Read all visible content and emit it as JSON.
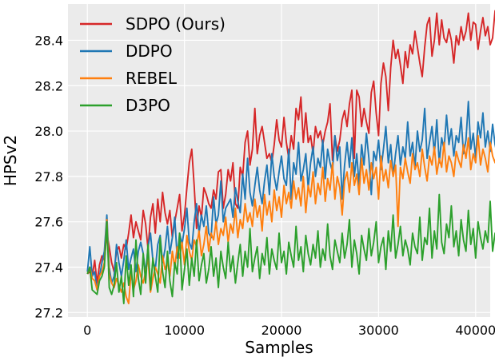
{
  "chart_data": {
    "type": "line",
    "title": "",
    "xlabel": "Samples",
    "ylabel": "HPSv2",
    "xlim": [
      -2000,
      41500
    ],
    "ylim": [
      27.18,
      28.56
    ],
    "xticks": [
      0,
      10000,
      20000,
      30000,
      40000
    ],
    "yticks": [
      27.2,
      27.4,
      27.6,
      27.8,
      28.0,
      28.2,
      28.4
    ],
    "grid": true,
    "background": "#ebebeb",
    "legend_position": "top-left",
    "x_start": 0,
    "x_step": 250,
    "series": [
      {
        "name": "SDPO (Ours)",
        "color": "#d62728",
        "values": [
          27.37,
          27.38,
          27.36,
          27.43,
          27.33,
          27.41,
          27.45,
          27.43,
          27.55,
          27.49,
          27.42,
          27.38,
          27.47,
          27.49,
          27.44,
          27.5,
          27.48,
          27.55,
          27.63,
          27.53,
          27.6,
          27.56,
          27.52,
          27.65,
          27.59,
          27.48,
          27.62,
          27.68,
          27.55,
          27.7,
          27.6,
          27.73,
          27.64,
          27.59,
          27.65,
          27.53,
          27.6,
          27.66,
          27.72,
          27.56,
          27.63,
          27.75,
          27.86,
          27.92,
          27.76,
          27.57,
          27.67,
          27.62,
          27.75,
          27.72,
          27.68,
          27.66,
          27.74,
          27.7,
          27.82,
          27.83,
          27.66,
          27.72,
          27.83,
          27.78,
          27.86,
          27.68,
          27.66,
          27.84,
          27.8,
          27.95,
          28.0,
          27.85,
          27.92,
          28.1,
          27.9,
          27.98,
          28.02,
          27.95,
          27.88,
          27.9,
          27.86,
          27.94,
          28.05,
          27.96,
          27.93,
          28.06,
          27.95,
          27.88,
          27.98,
          27.92,
          28.1,
          28.05,
          28.15,
          27.95,
          28.08,
          27.95,
          27.98,
          27.9,
          28.02,
          27.97,
          28.0,
          27.94,
          28.0,
          28.04,
          28.12,
          27.87,
          27.98,
          27.91,
          27.96,
          28.05,
          28.09,
          28.02,
          28.12,
          28.18,
          27.88,
          28.18,
          28.15,
          28.02,
          28.1,
          28.04,
          27.99,
          28.17,
          28.22,
          28.08,
          27.98,
          28.21,
          28.3,
          28.24,
          28.09,
          28.28,
          28.4,
          28.32,
          28.36,
          28.29,
          28.21,
          28.35,
          28.28,
          28.38,
          28.34,
          28.44,
          28.37,
          28.3,
          28.24,
          28.37,
          28.47,
          28.5,
          28.33,
          28.4,
          28.52,
          28.38,
          28.49,
          28.41,
          28.39,
          28.45,
          28.4,
          28.3,
          28.42,
          28.38,
          28.46,
          28.4,
          28.44,
          28.52,
          28.4,
          28.48,
          28.47,
          28.36,
          28.44,
          28.5,
          28.42,
          28.46,
          28.38,
          28.41,
          28.53,
          28.42,
          28.39,
          28.44,
          28.36,
          28.48,
          28.52,
          28.45,
          28.35,
          28.49,
          28.38,
          28.53,
          28.47,
          28.3,
          28.4,
          28.54,
          28.35,
          28.42,
          28.48,
          28.36,
          28.3,
          28.4,
          28.44,
          28.37,
          28.42,
          28.38,
          28.49,
          28.46
        ]
      },
      {
        "name": "DDPO",
        "color": "#1f77b4",
        "values": [
          27.38,
          27.49,
          27.36,
          27.38,
          27.3,
          27.36,
          27.42,
          27.47,
          27.63,
          27.4,
          27.33,
          27.36,
          27.5,
          27.42,
          27.36,
          27.43,
          27.52,
          27.39,
          27.44,
          27.48,
          27.38,
          27.47,
          27.51,
          27.46,
          27.37,
          27.49,
          27.55,
          27.43,
          27.39,
          27.5,
          27.54,
          27.42,
          27.48,
          27.58,
          27.46,
          27.53,
          27.62,
          27.44,
          27.55,
          27.5,
          27.57,
          27.66,
          27.51,
          27.48,
          27.6,
          27.68,
          27.55,
          27.63,
          27.58,
          27.67,
          27.55,
          27.53,
          27.71,
          27.59,
          27.63,
          27.78,
          27.6,
          27.66,
          27.68,
          27.7,
          27.62,
          27.75,
          27.69,
          27.64,
          27.81,
          27.7,
          27.88,
          27.73,
          27.67,
          27.76,
          27.84,
          27.74,
          27.68,
          27.78,
          27.85,
          27.72,
          27.9,
          27.8,
          27.74,
          27.82,
          27.89,
          27.79,
          27.76,
          27.92,
          27.7,
          27.86,
          27.81,
          27.95,
          27.78,
          27.83,
          27.9,
          27.75,
          27.86,
          27.93,
          27.8,
          27.88,
          27.84,
          27.96,
          27.79,
          27.92,
          27.86,
          27.82,
          27.98,
          27.87,
          27.93,
          27.7,
          27.85,
          27.95,
          27.84,
          27.97,
          27.8,
          27.9,
          27.76,
          27.94,
          27.85,
          27.99,
          27.88,
          27.72,
          27.91,
          27.87,
          27.96,
          27.83,
          27.92,
          28.02,
          27.86,
          27.94,
          27.8,
          27.9,
          27.98,
          27.85,
          27.93,
          27.88,
          28.04,
          27.89,
          27.95,
          27.84,
          28.0,
          27.91,
          27.96,
          28.1,
          27.88,
          27.95,
          28.02,
          27.9,
          28.05,
          27.86,
          27.97,
          27.92,
          28.07,
          27.94,
          28.01,
          27.89,
          27.98,
          27.95,
          28.06,
          27.9,
          27.96,
          28.13,
          27.92,
          27.99,
          27.88,
          28.04,
          27.97,
          28.08,
          27.93,
          28.0,
          27.91,
          28.03,
          27.94,
          27.89,
          27.98,
          28.05,
          27.92,
          28.09,
          27.95,
          27.88,
          28.02,
          27.97,
          27.94,
          28.06,
          27.9,
          27.99,
          28.08,
          27.93,
          28.07,
          27.96,
          27.91,
          28.03,
          27.94,
          28.07,
          27.89,
          27.96
        ]
      },
      {
        "name": "REBEL",
        "color": "#ff7f0e",
        "values": [
          27.37,
          27.4,
          27.35,
          27.34,
          27.3,
          27.36,
          27.38,
          27.42,
          27.61,
          27.37,
          27.33,
          27.31,
          27.35,
          27.32,
          27.29,
          27.33,
          27.27,
          27.24,
          27.38,
          27.3,
          27.34,
          27.41,
          27.36,
          27.33,
          27.38,
          27.44,
          27.29,
          27.35,
          27.4,
          27.37,
          27.33,
          27.45,
          27.39,
          27.42,
          27.36,
          27.47,
          27.4,
          27.49,
          27.44,
          27.51,
          27.41,
          27.54,
          27.47,
          27.43,
          27.52,
          27.49,
          27.56,
          27.45,
          27.5,
          27.58,
          27.47,
          27.55,
          27.52,
          27.6,
          27.5,
          27.57,
          27.54,
          27.62,
          27.51,
          27.59,
          27.55,
          27.66,
          27.53,
          27.61,
          27.57,
          27.68,
          27.6,
          27.64,
          27.58,
          27.7,
          27.62,
          27.67,
          27.56,
          27.72,
          27.63,
          27.69,
          27.6,
          27.74,
          27.65,
          27.71,
          27.62,
          27.76,
          27.68,
          27.73,
          27.66,
          27.78,
          27.7,
          27.75,
          27.67,
          27.8,
          27.64,
          27.76,
          27.71,
          27.82,
          27.68,
          27.77,
          27.72,
          27.84,
          27.69,
          27.79,
          27.74,
          27.86,
          27.7,
          27.8,
          27.75,
          27.63,
          27.78,
          27.82,
          27.73,
          27.86,
          27.76,
          27.81,
          27.72,
          27.88,
          27.77,
          27.83,
          27.74,
          27.86,
          27.79,
          27.84,
          27.7,
          27.89,
          27.78,
          27.83,
          27.75,
          27.87,
          27.8,
          27.85,
          27.58,
          27.84,
          27.79,
          27.88,
          27.82,
          27.77,
          27.9,
          27.83,
          27.86,
          27.8,
          27.92,
          27.84,
          27.78,
          27.89,
          27.85,
          27.93,
          27.81,
          27.88,
          27.84,
          27.95,
          27.82,
          27.89,
          27.86,
          27.8,
          27.91,
          27.87,
          27.84,
          27.94,
          27.88,
          27.97,
          27.83,
          27.9,
          27.86,
          27.98,
          27.85,
          27.92,
          27.88,
          27.82,
          27.95,
          27.89,
          27.86,
          27.93,
          27.9,
          27.84,
          27.96,
          27.88,
          27.92,
          27.87,
          27.99,
          27.9,
          27.85,
          27.94,
          27.89,
          27.96,
          27.86,
          27.93,
          27.88,
          28.01,
          27.85,
          27.94,
          27.9,
          27.86,
          28.0,
          27.92
        ]
      },
      {
        "name": "D3PO",
        "color": "#2ca02c",
        "values": [
          27.37,
          27.4,
          27.3,
          27.29,
          27.28,
          27.34,
          27.36,
          27.4,
          27.6,
          27.31,
          27.28,
          27.32,
          27.42,
          27.29,
          27.36,
          27.24,
          27.45,
          27.32,
          27.41,
          27.27,
          27.52,
          27.35,
          27.28,
          27.46,
          27.33,
          27.5,
          27.3,
          27.44,
          27.36,
          27.29,
          27.53,
          27.38,
          27.31,
          27.47,
          27.34,
          27.27,
          27.42,
          27.37,
          27.55,
          27.3,
          27.39,
          27.48,
          27.32,
          27.44,
          27.36,
          27.52,
          27.34,
          27.41,
          27.46,
          27.33,
          27.39,
          27.49,
          27.36,
          27.44,
          27.31,
          27.47,
          27.4,
          27.35,
          27.51,
          27.38,
          27.45,
          27.33,
          27.42,
          27.5,
          27.36,
          27.47,
          27.4,
          27.57,
          27.38,
          27.44,
          27.49,
          27.35,
          27.46,
          27.41,
          27.53,
          27.37,
          27.48,
          27.43,
          27.39,
          27.55,
          27.42,
          27.47,
          27.37,
          27.51,
          27.45,
          27.4,
          27.58,
          27.43,
          27.49,
          27.38,
          27.54,
          27.46,
          27.41,
          27.5,
          27.44,
          27.56,
          27.4,
          27.48,
          27.43,
          27.59,
          27.45,
          27.39,
          27.52,
          27.47,
          27.42,
          27.55,
          27.44,
          27.5,
          27.61,
          27.4,
          27.52,
          27.46,
          27.37,
          27.54,
          27.48,
          27.43,
          27.57,
          27.45,
          27.51,
          27.6,
          27.42,
          27.49,
          27.53,
          27.39,
          27.56,
          27.47,
          27.63,
          27.44,
          27.5,
          27.58,
          27.45,
          27.52,
          27.48,
          27.41,
          27.55,
          27.49,
          27.46,
          27.62,
          27.43,
          27.53,
          27.5,
          27.66,
          27.44,
          27.56,
          27.48,
          27.72,
          27.51,
          27.46,
          27.59,
          27.53,
          27.67,
          27.49,
          27.56,
          27.45,
          27.61,
          27.52,
          27.47,
          27.65,
          27.5,
          27.57,
          27.44,
          27.6,
          27.53,
          27.48,
          27.56,
          27.51,
          27.69,
          27.47,
          27.55,
          27.5,
          27.58,
          27.52,
          27.46,
          27.59,
          27.54,
          27.49,
          27.57,
          27.51,
          27.54,
          27.48,
          27.56,
          27.53,
          27.5,
          27.58,
          27.46,
          27.55,
          27.52,
          27.59,
          27.47,
          27.54,
          27.51,
          27.46,
          27.57,
          27.49,
          27.56
        ]
      }
    ]
  }
}
